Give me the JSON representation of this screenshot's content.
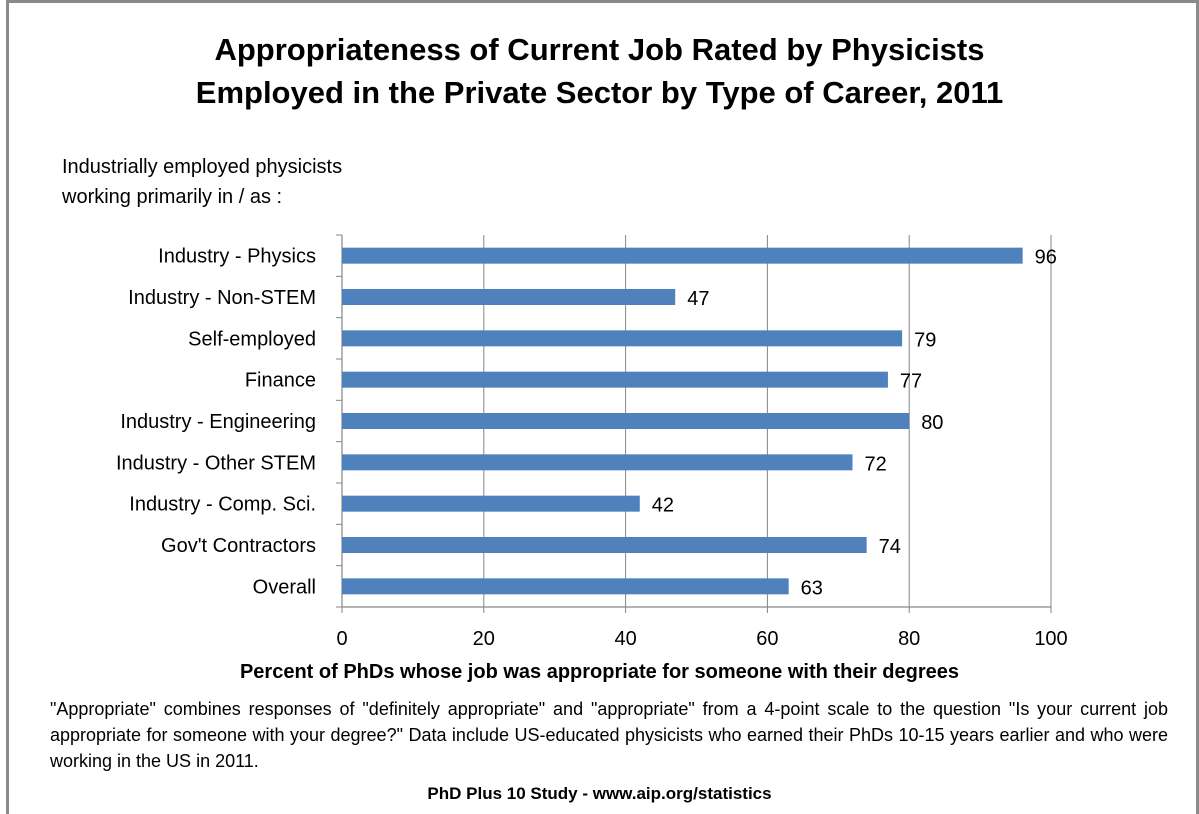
{
  "chart_data": {
    "type": "bar",
    "orientation": "horizontal",
    "title": [
      "Appropriateness of Current Job Rated by Physicists",
      "Employed in the Private Sector by Type of Career, 2011"
    ],
    "subtitle": [
      "Industrially employed physicists",
      "working primarily in / as :"
    ],
    "categories": [
      "Industry - Physics",
      "Industry - Non-STEM",
      "Self-employed",
      "Finance",
      "Industry - Engineering",
      "Industry - Other STEM",
      "Industry - Comp. Sci.",
      "Gov't Contractors",
      "Overall"
    ],
    "values": [
      96,
      47,
      79,
      77,
      80,
      72,
      42,
      74,
      63
    ],
    "xlabel": "Percent of PhDs whose job was appropriate for someone with their degrees",
    "xlim": [
      0,
      100
    ],
    "xticks": [
      0,
      20,
      40,
      60,
      80,
      100
    ],
    "grid": true,
    "bar_color": "#4f81bd"
  },
  "note": "\"Appropriate\" combines responses of \"definitely appropriate\" and \"appropriate\" from a 4-point scale to the question \"Is your current job appropriate for someone with your degree?\"  Data include US-educated physicists who earned their PhDs 10-15 years earlier and who were working in the US in 2011.",
  "source": "PhD Plus 10 Study - www.aip.org/statistics"
}
